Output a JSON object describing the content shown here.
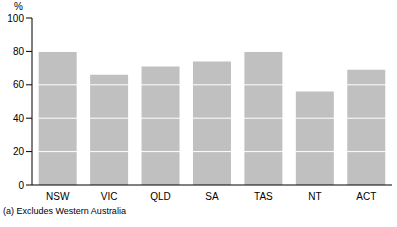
{
  "chart_data": {
    "type": "bar",
    "y_label": "%",
    "footnote": "(a) Excludes Western Australia",
    "categories": [
      "NSW",
      "VIC",
      "QLD",
      "SA",
      "TAS",
      "NT",
      "ACT"
    ],
    "values": [
      80,
      66,
      71,
      74,
      80,
      56,
      69
    ],
    "color": "#c0c0c0",
    "ylim": [
      0,
      100
    ],
    "yticks": [
      0,
      20,
      40,
      60,
      80,
      100
    ],
    "grid": true
  }
}
